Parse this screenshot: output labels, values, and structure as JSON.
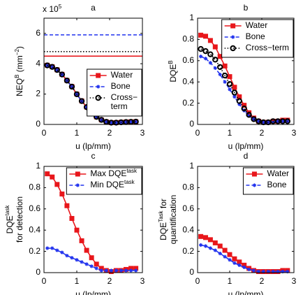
{
  "chart_data": [
    {
      "type": "line",
      "title": "a",
      "xlabel": "u (lp/mm)",
      "ylabel": [
        {
          "text": "NEQ"
        },
        {
          "text": "B",
          "sup": true
        },
        {
          "text": " (mm"
        },
        {
          "text": "−2",
          "sup": true
        },
        {
          "text": ")"
        }
      ],
      "y_multiplier": [
        {
          "text": "x 10"
        },
        {
          "text": "5",
          "sup": true
        }
      ],
      "x": [
        0.1,
        0.25,
        0.4,
        0.55,
        0.7,
        0.85,
        1.0,
        1.15,
        1.3,
        1.45,
        1.6,
        1.75,
        1.9,
        2.05,
        2.2,
        2.35,
        2.5,
        2.65,
        2.8
      ],
      "series": [
        {
          "name": "Water",
          "color": "#e8161b",
          "dash": "solid",
          "marker": "square",
          "values": [
            390000,
            380000,
            360000,
            330000,
            290000,
            250000,
            200000,
            155000,
            115000,
            80000,
            50000,
            30000,
            17000,
            12000,
            12000,
            14000,
            16000,
            17000,
            18000
          ]
        },
        {
          "name": "Bone",
          "color": "#2233ee",
          "dash": "dashed",
          "marker": "star",
          "values": [
            388000,
            378000,
            358000,
            328000,
            288000,
            248000,
            198000,
            153000,
            113000,
            78000,
            49000,
            29000,
            16000,
            11000,
            11000,
            13000,
            15000,
            16000,
            17000
          ]
        },
        {
          "name": [
            {
              "text": "Cross−"
            },
            {
              "text": "term",
              "newline": true
            }
          ],
          "color": "#000000",
          "dash": "dotted",
          "marker": "circle",
          "values": [
            389000,
            379000,
            359000,
            329000,
            289000,
            249000,
            199000,
            154000,
            114000,
            79000,
            50000,
            30000,
            17000,
            12000,
            12000,
            14000,
            16000,
            17000,
            18000
          ]
        }
      ],
      "hlines": [
        {
          "value": 590000,
          "color": "#2233ee",
          "dash": "dashed"
        },
        {
          "value": 480000,
          "color": "#000000",
          "dash": "dotted"
        },
        {
          "value": 450000,
          "color": "#e8161b",
          "dash": "solid"
        }
      ],
      "xlim": [
        0,
        3
      ],
      "xticks": [
        0,
        1,
        2,
        3
      ],
      "ylim": [
        0,
        700000
      ],
      "yticks": [
        0,
        {
          "value": 200000,
          "label": "2"
        },
        {
          "value": 400000,
          "label": "4"
        },
        {
          "value": 600000,
          "label": "6"
        }
      ],
      "legend": "lower right"
    },
    {
      "type": "line",
      "title": "b",
      "xlabel": "u (lp/mm)",
      "ylabel": [
        {
          "text": "DQE"
        },
        {
          "text": "B",
          "sup": true
        }
      ],
      "x": [
        0.1,
        0.25,
        0.4,
        0.55,
        0.7,
        0.85,
        1.0,
        1.15,
        1.3,
        1.45,
        1.6,
        1.75,
        1.9,
        2.05,
        2.2,
        2.35,
        2.5,
        2.65,
        2.8
      ],
      "series": [
        {
          "name": "Water",
          "color": "#e8161b",
          "dash": "solid",
          "marker": "square",
          "values": [
            0.84,
            0.83,
            0.79,
            0.73,
            0.64,
            0.55,
            0.45,
            0.35,
            0.26,
            0.18,
            0.11,
            0.06,
            0.03,
            0.02,
            0.02,
            0.03,
            0.03,
            0.04,
            0.04
          ]
        },
        {
          "name": "Bone",
          "color": "#2233ee",
          "dash": "dashed",
          "marker": "star",
          "values": [
            0.64,
            0.62,
            0.58,
            0.53,
            0.47,
            0.4,
            0.33,
            0.26,
            0.19,
            0.13,
            0.08,
            0.05,
            0.03,
            0.02,
            0.02,
            0.02,
            0.03,
            0.03,
            0.03
          ]
        },
        {
          "name": "Cross−term",
          "color": "#000000",
          "dash": "dotted",
          "marker": "circle",
          "values": [
            0.71,
            0.69,
            0.66,
            0.61,
            0.54,
            0.46,
            0.38,
            0.3,
            0.22,
            0.15,
            0.09,
            0.05,
            0.03,
            0.02,
            0.02,
            0.03,
            0.03,
            0.03,
            0.03
          ]
        }
      ],
      "xlim": [
        0,
        3
      ],
      "xticks": [
        0,
        1,
        2,
        3
      ],
      "ylim": [
        0,
        1
      ],
      "yticks": [
        0,
        0.2,
        0.4,
        0.6,
        0.8,
        1
      ],
      "legend": "upper right"
    },
    {
      "type": "line",
      "title": "c",
      "xlabel": "u (lp/mm)",
      "ylabel": [
        {
          "text": "DQE"
        },
        {
          "text": "task",
          "sup": true
        },
        {
          "text": "for detection",
          "newline": true
        }
      ],
      "x": [
        0.1,
        0.25,
        0.4,
        0.55,
        0.7,
        0.85,
        1.0,
        1.15,
        1.3,
        1.45,
        1.6,
        1.75,
        1.9,
        2.05,
        2.2,
        2.35,
        2.5,
        2.65,
        2.8
      ],
      "series": [
        {
          "name": [
            {
              "text": "Max DQE"
            },
            {
              "text": "task",
              "sup": true
            }
          ],
          "color": "#e8161b",
          "dash": "solid",
          "marker": "square",
          "values": [
            0.93,
            0.9,
            0.83,
            0.74,
            0.63,
            0.51,
            0.4,
            0.3,
            0.21,
            0.14,
            0.08,
            0.04,
            0.02,
            0.01,
            0.02,
            0.02,
            0.03,
            0.04,
            0.04
          ]
        },
        {
          "name": [
            {
              "text": "Min DQE"
            },
            {
              "text": "task",
              "sup": true
            }
          ],
          "color": "#2233ee",
          "dash": "dashed",
          "marker": "star",
          "values": [
            0.23,
            0.23,
            0.21,
            0.19,
            0.16,
            0.14,
            0.12,
            0.1,
            0.08,
            0.06,
            0.04,
            0.02,
            0.02,
            0.02,
            0.02,
            0.02,
            0.02,
            0.02,
            0.02
          ]
        }
      ],
      "xlim": [
        0,
        3
      ],
      "xticks": [
        0,
        1,
        2,
        3
      ],
      "ylim": [
        0,
        1
      ],
      "yticks": [
        0,
        0.2,
        0.4,
        0.6,
        0.8,
        1
      ],
      "legend": "upper right"
    },
    {
      "type": "line",
      "title": "d",
      "xlabel": "u (lp/mm)",
      "ylabel": [
        {
          "text": "DQE"
        },
        {
          "text": "Task",
          "sup": true
        },
        {
          "text": " for"
        },
        {
          "text": "quantification",
          "newline": true
        }
      ],
      "x": [
        0.1,
        0.25,
        0.4,
        0.55,
        0.7,
        0.85,
        1.0,
        1.15,
        1.3,
        1.45,
        1.6,
        1.75,
        1.9,
        2.05,
        2.2,
        2.35,
        2.5,
        2.65,
        2.8
      ],
      "series": [
        {
          "name": "Water",
          "color": "#e8161b",
          "dash": "solid",
          "marker": "square",
          "values": [
            0.34,
            0.33,
            0.31,
            0.28,
            0.25,
            0.21,
            0.17,
            0.13,
            0.1,
            0.07,
            0.04,
            0.02,
            0.01,
            0.01,
            0.01,
            0.01,
            0.01,
            0.02,
            0.02
          ]
        },
        {
          "name": "Bone",
          "color": "#2233ee",
          "dash": "dashed",
          "marker": "star",
          "values": [
            0.26,
            0.25,
            0.23,
            0.21,
            0.18,
            0.15,
            0.12,
            0.09,
            0.07,
            0.05,
            0.03,
            0.02,
            0.01,
            0.01,
            0.01,
            0.01,
            0.01,
            0.01,
            0.01
          ]
        }
      ],
      "xlim": [
        0,
        3
      ],
      "xticks": [
        0,
        1,
        2,
        3
      ],
      "ylim": [
        0,
        1
      ],
      "yticks": [
        0,
        0.2,
        0.4,
        0.6,
        0.8,
        1
      ],
      "legend": "upper right"
    }
  ]
}
